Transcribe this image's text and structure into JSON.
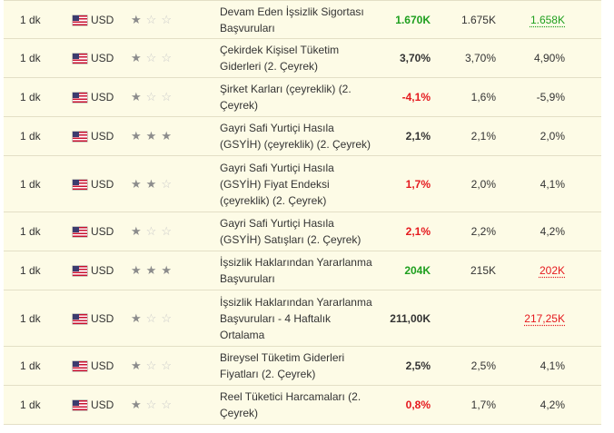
{
  "colors": {
    "better": "#1e9f1e",
    "worse": "#e5191e",
    "row_bg": "#fdfbe6"
  },
  "rows": [
    {
      "time": "1 dk",
      "currency": "USD",
      "importance": 1,
      "event": "Devam Eden İşsizlik Sigortası Başvuruları",
      "actual": "1.670K",
      "actual_state": "better",
      "forecast": "1.675K",
      "previous": "1.658K",
      "previous_state": "better",
      "h": 42
    },
    {
      "time": "1 dk",
      "currency": "USD",
      "importance": 1,
      "event": "Çekirdek Kişisel Tüketim Giderleri (2. Çeyrek)",
      "actual": "3,70%",
      "actual_state": "",
      "forecast": "3,70%",
      "previous": "4,90%",
      "previous_state": "",
      "h": 43
    },
    {
      "time": "1 dk",
      "currency": "USD",
      "importance": 1,
      "event": "Şirket Karları (çeyreklik) (2. Çeyrek)",
      "actual": "-4,1%",
      "actual_state": "worse",
      "forecast": "1,6%",
      "previous": "-5,9%",
      "previous_state": "",
      "h": 43
    },
    {
      "time": "1 dk",
      "currency": "USD",
      "importance": 3,
      "event": "Gayri Safi Yurtiçi Hasıla (GSYİH) (çeyreklik) (2. Çeyrek)",
      "actual": "2,1%",
      "actual_state": "",
      "forecast": "2,1%",
      "previous": "2,0%",
      "previous_state": "",
      "h": 43
    },
    {
      "time": "1 dk",
      "currency": "USD",
      "importance": 2,
      "event": "Gayri Safi Yurtiçi Hasıla (GSYİH) Fiyat Endeksi (çeyreklik) (2. Çeyrek)",
      "actual": "1,7%",
      "actual_state": "worse",
      "forecast": "2,0%",
      "previous": "4,1%",
      "previous_state": "",
      "h": 62
    },
    {
      "time": "1 dk",
      "currency": "USD",
      "importance": 1,
      "event": "Gayri Safi Yurtiçi Hasıla (GSYİH) Satışları (2. Çeyrek)",
      "actual": "2,1%",
      "actual_state": "worse",
      "forecast": "2,2%",
      "previous": "4,2%",
      "previous_state": "",
      "h": 43
    },
    {
      "time": "1 dk",
      "currency": "USD",
      "importance": 3,
      "event": "İşsizlik Haklarından Yararlanma Başvuruları",
      "actual": "204K",
      "actual_state": "better",
      "forecast": "215K",
      "previous": "202K",
      "previous_state": "worse",
      "h": 43
    },
    {
      "time": "1 dk",
      "currency": "USD",
      "importance": 1,
      "event": "İşsizlik Haklarından Yararlanma Başvuruları - 4 Haftalık Ortalama",
      "actual": "211,00K",
      "actual_state": "",
      "forecast": "",
      "previous": "217,25K",
      "previous_state": "worse",
      "h": 62
    },
    {
      "time": "1 dk",
      "currency": "USD",
      "importance": 1,
      "event": "Bireysel Tüketim Giderleri Fiyatları (2. Çeyrek)",
      "actual": "2,5%",
      "actual_state": "",
      "forecast": "2,5%",
      "previous": "4,1%",
      "previous_state": "",
      "h": 43
    },
    {
      "time": "1 dk",
      "currency": "USD",
      "importance": 1,
      "event": "Reel Tüketici Harcamaları (2. Çeyrek)",
      "actual": "0,8%",
      "actual_state": "worse",
      "forecast": "1,7%",
      "previous": "4,2%",
      "previous_state": "",
      "h": 43
    }
  ]
}
